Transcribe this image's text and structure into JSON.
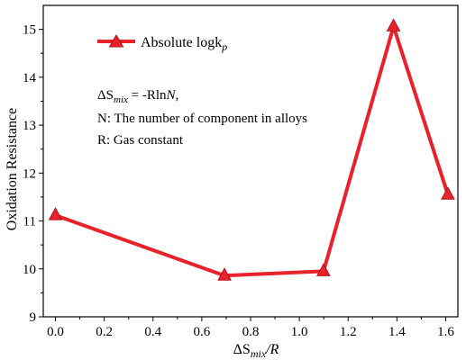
{
  "chart_data": {
    "type": "line",
    "title": "",
    "xlabel": {
      "base": "ΔS",
      "sub": "mix",
      "rest": "/R"
    },
    "ylabel": "Oxidation Resistance",
    "xlim": [
      -0.05,
      1.65
    ],
    "ylim": [
      9,
      15.5
    ],
    "xticks": [
      0.0,
      0.2,
      0.4,
      0.6,
      0.8,
      1.0,
      1.2,
      1.4,
      1.6
    ],
    "xtick_labels": [
      "0.0",
      "0.2",
      "0.4",
      "0.6",
      "0.8",
      "1.0",
      "1.2",
      "1.4",
      "1.6"
    ],
    "yticks": [
      9,
      10,
      11,
      12,
      13,
      14,
      15
    ],
    "ytick_labels": [
      "9",
      "10",
      "11",
      "12",
      "13",
      "14",
      "15"
    ],
    "grid": false,
    "legend_position": "top-left",
    "series": [
      {
        "name": "Absolute  logk",
        "name_sub": "p",
        "color": "#e8212a",
        "marker": "triangle",
        "x": [
          0.0,
          0.693,
          1.099,
          1.386,
          1.609
        ],
        "y": [
          11.12,
          9.86,
          9.95,
          15.06,
          11.55
        ]
      }
    ],
    "annotations": {
      "line1": {
        "base": "ΔS",
        "sub": "mix",
        "rest": " = -Rln",
        "var": "N",
        "end": ","
      },
      "line2": "N: The number of  component in alloys",
      "line3": "R: Gas constant"
    }
  }
}
